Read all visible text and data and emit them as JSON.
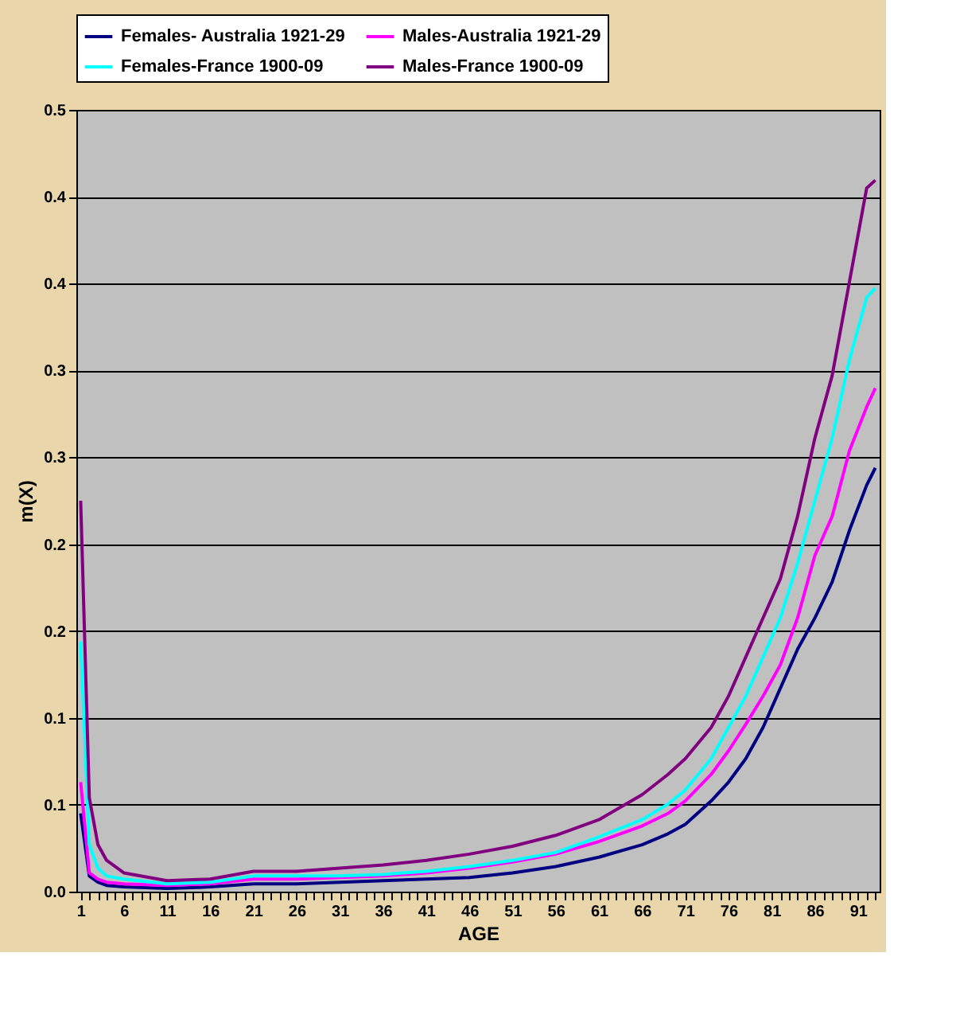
{
  "chart_data": {
    "type": "line",
    "xlabel": "AGE",
    "ylabel": "m(X)",
    "x": [
      1,
      2,
      3,
      4,
      6,
      11,
      16,
      21,
      26,
      31,
      36,
      41,
      46,
      51,
      56,
      61,
      66,
      69,
      71,
      74,
      76,
      78,
      80,
      82,
      84,
      86,
      88,
      90,
      92,
      93
    ],
    "series": [
      {
        "name": "Females- Australia 1921-29",
        "color": "#000080",
        "values": [
          0.05,
          0.01,
          0.006,
          0.004,
          0.003,
          0.002,
          0.003,
          0.005,
          0.005,
          0.006,
          0.007,
          0.008,
          0.009,
          0.012,
          0.016,
          0.022,
          0.03,
          0.037,
          0.043,
          0.058,
          0.07,
          0.085,
          0.105,
          0.13,
          0.155,
          0.175,
          0.198,
          0.231,
          0.26,
          0.271
        ]
      },
      {
        "name": "Males-Australia 1921-29",
        "color": "#ff00ff",
        "values": [
          0.07,
          0.012,
          0.008,
          0.006,
          0.005,
          0.004,
          0.005,
          0.008,
          0.008,
          0.009,
          0.01,
          0.012,
          0.015,
          0.019,
          0.024,
          0.032,
          0.042,
          0.05,
          0.058,
          0.075,
          0.09,
          0.107,
          0.125,
          0.145,
          0.175,
          0.215,
          0.24,
          0.282,
          0.31,
          0.322
        ]
      },
      {
        "name": "Females-France 1900-09",
        "color": "#00ffff",
        "values": [
          0.16,
          0.03,
          0.015,
          0.01,
          0.008,
          0.005,
          0.006,
          0.01,
          0.01,
          0.01,
          0.011,
          0.013,
          0.016,
          0.02,
          0.025,
          0.035,
          0.046,
          0.056,
          0.065,
          0.085,
          0.105,
          0.125,
          0.15,
          0.175,
          0.21,
          0.25,
          0.29,
          0.34,
          0.38,
          0.386
        ]
      },
      {
        "name": "Males-France 1900-09",
        "color": "#800080",
        "values": [
          0.25,
          0.06,
          0.03,
          0.02,
          0.012,
          0.007,
          0.008,
          0.013,
          0.013,
          0.015,
          0.017,
          0.02,
          0.024,
          0.029,
          0.036,
          0.046,
          0.062,
          0.075,
          0.085,
          0.105,
          0.125,
          0.15,
          0.175,
          0.2,
          0.24,
          0.29,
          0.33,
          0.39,
          0.45,
          0.455
        ]
      }
    ],
    "ylim": [
      0,
      0.5
    ],
    "yticks": [
      {
        "value": 0,
        "label": "0.0"
      },
      {
        "value": 0.0556,
        "label": "0.1"
      },
      {
        "value": 0.1111,
        "label": "0.1"
      },
      {
        "value": 0.1667,
        "label": "0.2"
      },
      {
        "value": 0.2222,
        "label": "0.2"
      },
      {
        "value": 0.2778,
        "label": "0.3"
      },
      {
        "value": 0.3333,
        "label": "0.3"
      },
      {
        "value": 0.3889,
        "label": "0.4"
      },
      {
        "value": 0.4444,
        "label": "0.4"
      },
      {
        "value": 0.5,
        "label": "0.5"
      }
    ],
    "xlim": [
      0.5,
      93.5
    ],
    "xticks": [
      1,
      {
        "value": 2,
        "label": null
      },
      {
        "value": 3,
        "label": null
      },
      {
        "value": 4,
        "label": null
      },
      {
        "value": 5,
        "label": null
      },
      6,
      {
        "value": 7,
        "label": null
      },
      {
        "value": 8,
        "label": null
      },
      {
        "value": 9,
        "label": null
      },
      {
        "value": 10,
        "label": null
      },
      11,
      {
        "value": 12,
        "label": null
      },
      {
        "value": 13,
        "label": null
      },
      {
        "value": 14,
        "label": null
      },
      {
        "value": 15,
        "label": null
      },
      16,
      {
        "value": 17,
        "label": null
      },
      {
        "value": 18,
        "label": null
      },
      {
        "value": 19,
        "label": null
      },
      {
        "value": 20,
        "label": null
      },
      21,
      {
        "value": 22,
        "label": null
      },
      {
        "value": 23,
        "label": null
      },
      {
        "value": 24,
        "label": null
      },
      {
        "value": 25,
        "label": null
      },
      26,
      {
        "value": 27,
        "label": null
      },
      {
        "value": 28,
        "label": null
      },
      {
        "value": 29,
        "label": null
      },
      {
        "value": 30,
        "label": null
      },
      31,
      {
        "value": 32,
        "label": null
      },
      {
        "value": 33,
        "label": null
      },
      {
        "value": 34,
        "label": null
      },
      {
        "value": 35,
        "label": null
      },
      36,
      {
        "value": 37,
        "label": null
      },
      {
        "value": 38,
        "label": null
      },
      {
        "value": 39,
        "label": null
      },
      {
        "value": 40,
        "label": null
      },
      41,
      {
        "value": 42,
        "label": null
      },
      {
        "value": 43,
        "label": null
      },
      {
        "value": 44,
        "label": null
      },
      {
        "value": 45,
        "label": null
      },
      46,
      {
        "value": 47,
        "label": null
      },
      {
        "value": 48,
        "label": null
      },
      {
        "value": 49,
        "label": null
      },
      {
        "value": 50,
        "label": null
      },
      51,
      {
        "value": 52,
        "label": null
      },
      {
        "value": 53,
        "label": null
      },
      {
        "value": 54,
        "label": null
      },
      {
        "value": 55,
        "label": null
      },
      56,
      {
        "value": 57,
        "label": null
      },
      {
        "value": 58,
        "label": null
      },
      {
        "value": 59,
        "label": null
      },
      {
        "value": 60,
        "label": null
      },
      61,
      {
        "value": 62,
        "label": null
      },
      {
        "value": 63,
        "label": null
      },
      {
        "value": 64,
        "label": null
      },
      {
        "value": 65,
        "label": null
      },
      66,
      {
        "value": 67,
        "label": null
      },
      {
        "value": 68,
        "label": null
      },
      {
        "value": 69,
        "label": null
      },
      {
        "value": 70,
        "label": null
      },
      71,
      {
        "value": 72,
        "label": null
      },
      {
        "value": 73,
        "label": null
      },
      {
        "value": 74,
        "label": null
      },
      {
        "value": 75,
        "label": null
      },
      76,
      {
        "value": 77,
        "label": null
      },
      {
        "value": 78,
        "label": null
      },
      {
        "value": 79,
        "label": null
      },
      {
        "value": 80,
        "label": null
      },
      81,
      {
        "value": 82,
        "label": null
      },
      {
        "value": 83,
        "label": null
      },
      {
        "value": 84,
        "label": null
      },
      {
        "value": 85,
        "label": null
      },
      86,
      {
        "value": 87,
        "label": null
      },
      {
        "value": 88,
        "label": null
      },
      {
        "value": 89,
        "label": null
      },
      {
        "value": 90,
        "label": null
      },
      91,
      {
        "value": 92,
        "label": null
      },
      {
        "value": 93,
        "label": null
      }
    ],
    "grid": "y",
    "legend": "top",
    "marker": "none",
    "line_style": "solid"
  }
}
